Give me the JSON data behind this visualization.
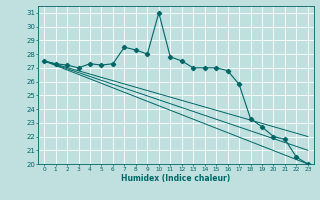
{
  "xlabel": "Humidex (Indice chaleur)",
  "bg_color": "#c0e0e0",
  "grid_color": "#ffffff",
  "line_color": "#006666",
  "ylim": [
    20,
    31.5
  ],
  "xlim": [
    -0.5,
    23.5
  ],
  "yticks": [
    20,
    21,
    22,
    23,
    24,
    25,
    26,
    27,
    28,
    29,
    30,
    31
  ],
  "xticks": [
    0,
    1,
    2,
    3,
    4,
    5,
    6,
    7,
    8,
    9,
    10,
    11,
    12,
    13,
    14,
    15,
    16,
    17,
    18,
    19,
    20,
    21,
    22,
    23
  ],
  "main_line": {
    "x": [
      0,
      1,
      2,
      3,
      4,
      5,
      6,
      7,
      8,
      9,
      10,
      11,
      12,
      13,
      14,
      15,
      16,
      17,
      18,
      19,
      20,
      21,
      22,
      23
    ],
    "y": [
      27.5,
      27.3,
      27.2,
      27.0,
      27.3,
      27.2,
      27.3,
      28.5,
      28.3,
      28.0,
      31.0,
      27.8,
      27.5,
      27.0,
      27.0,
      27.0,
      26.8,
      25.8,
      23.3,
      22.7,
      22.0,
      21.8,
      20.5,
      20.0
    ]
  },
  "straight_lines": [
    {
      "x0": 0,
      "y0": 27.5,
      "x1": 23,
      "y1": 20.0
    },
    {
      "x0": 0,
      "y0": 27.5,
      "x1": 23,
      "y1": 21.0
    },
    {
      "x0": 0,
      "y0": 27.5,
      "x1": 23,
      "y1": 22.0
    }
  ]
}
